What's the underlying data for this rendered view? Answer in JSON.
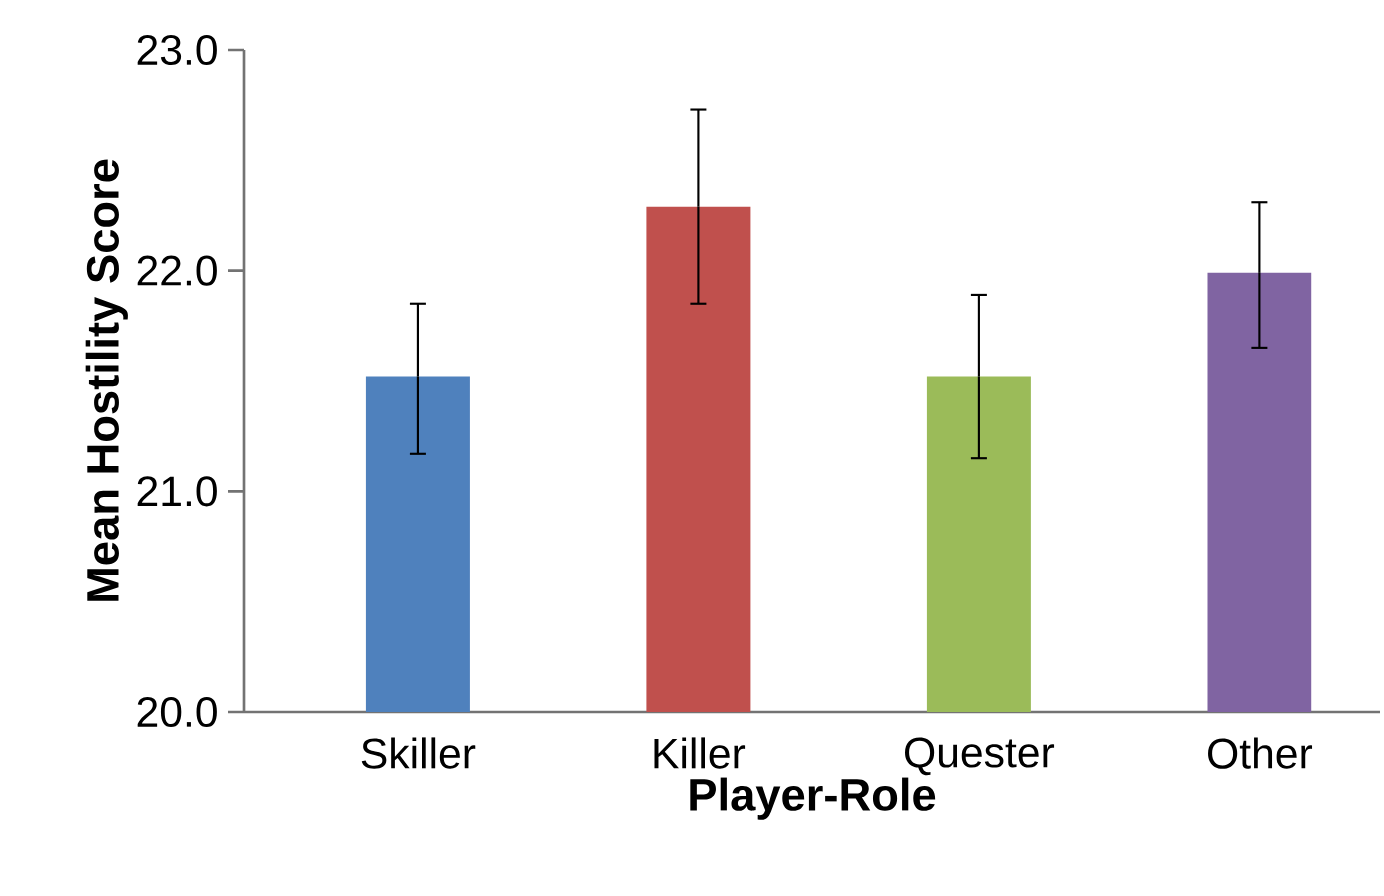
{
  "chart_data": {
    "type": "bar",
    "xlabel": "Player-Role",
    "ylabel": "Mean Hostility Score",
    "categories": [
      "Skiller",
      "Killer",
      "Quester",
      "Other"
    ],
    "values": [
      21.52,
      22.29,
      21.52,
      21.99
    ],
    "colors": [
      "#4f81bd",
      "#c0504d",
      "#9bbb59",
      "#8064a2"
    ],
    "errors": [
      [
        21.17,
        21.85
      ],
      [
        21.85,
        22.73
      ],
      [
        21.15,
        21.89
      ],
      [
        21.65,
        22.31
      ]
    ],
    "ylim": [
      20,
      23
    ],
    "yticks": [
      {
        "value": 20,
        "label": "20.0"
      },
      {
        "value": 21,
        "label": "21.0"
      },
      {
        "value": 22,
        "label": "22.0"
      },
      {
        "value": 23,
        "label": "23.0"
      }
    ],
    "grid": false
  }
}
